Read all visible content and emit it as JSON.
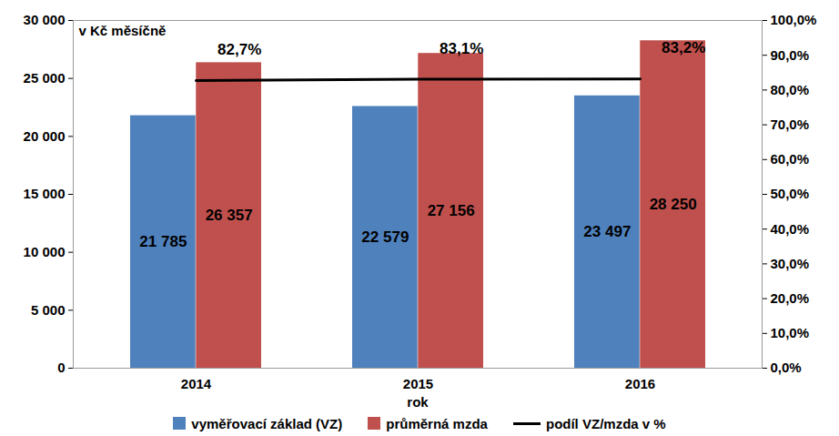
{
  "chart_data": {
    "type": "bar",
    "x_label": "rok",
    "y_label": "v Kč měsíčně",
    "categories": [
      "2014",
      "2015",
      "2016"
    ],
    "series": [
      {
        "name": "vyměřovací základ (VZ)",
        "color": "#4f81bd",
        "values": [
          21785,
          22579,
          23497
        ],
        "value_labels": [
          "21 785",
          "22 579",
          "23 497"
        ]
      },
      {
        "name": "průměrná mzda",
        "color": "#c0504d",
        "values": [
          26357,
          27156,
          28250
        ],
        "value_labels": [
          "26 357",
          "27 156",
          "28 250"
        ]
      },
      {
        "name": "podíl VZ/mzda v %",
        "type": "line",
        "axis": "y2",
        "color": "#000000",
        "values": [
          82.7,
          83.1,
          83.2
        ],
        "value_labels": [
          "82,7%",
          "83,1%",
          "83,2%"
        ]
      }
    ],
    "ylim": [
      0,
      30000
    ],
    "yticks": [
      0,
      {
        "value": 5000,
        "label": "5 000"
      },
      {
        "value": 10000,
        "label": "10 000"
      },
      {
        "value": 15000,
        "label": "15 000"
      },
      {
        "value": 20000,
        "label": "20 000"
      },
      {
        "value": 25000,
        "label": "25 000"
      },
      {
        "value": 30000,
        "label": "30 000"
      }
    ],
    "y2lim": [
      0,
      100
    ],
    "y2ticks": [
      {
        "value": 0,
        "label": "0,0%"
      },
      {
        "value": 10,
        "label": "10,0%"
      },
      {
        "value": 20,
        "label": "20,0%"
      },
      {
        "value": 30,
        "label": "30,0%"
      },
      {
        "value": 40,
        "label": "40,0%"
      },
      {
        "value": 50,
        "label": "50,0%"
      },
      {
        "value": 60,
        "label": "60,0%"
      },
      {
        "value": 70,
        "label": "70,0%"
      },
      {
        "value": 80,
        "label": "80,0%"
      },
      {
        "value": 90,
        "label": "90,0%"
      },
      {
        "value": 100,
        "label": "100,0%"
      }
    ],
    "data_labels": true,
    "legend": "bottom"
  }
}
